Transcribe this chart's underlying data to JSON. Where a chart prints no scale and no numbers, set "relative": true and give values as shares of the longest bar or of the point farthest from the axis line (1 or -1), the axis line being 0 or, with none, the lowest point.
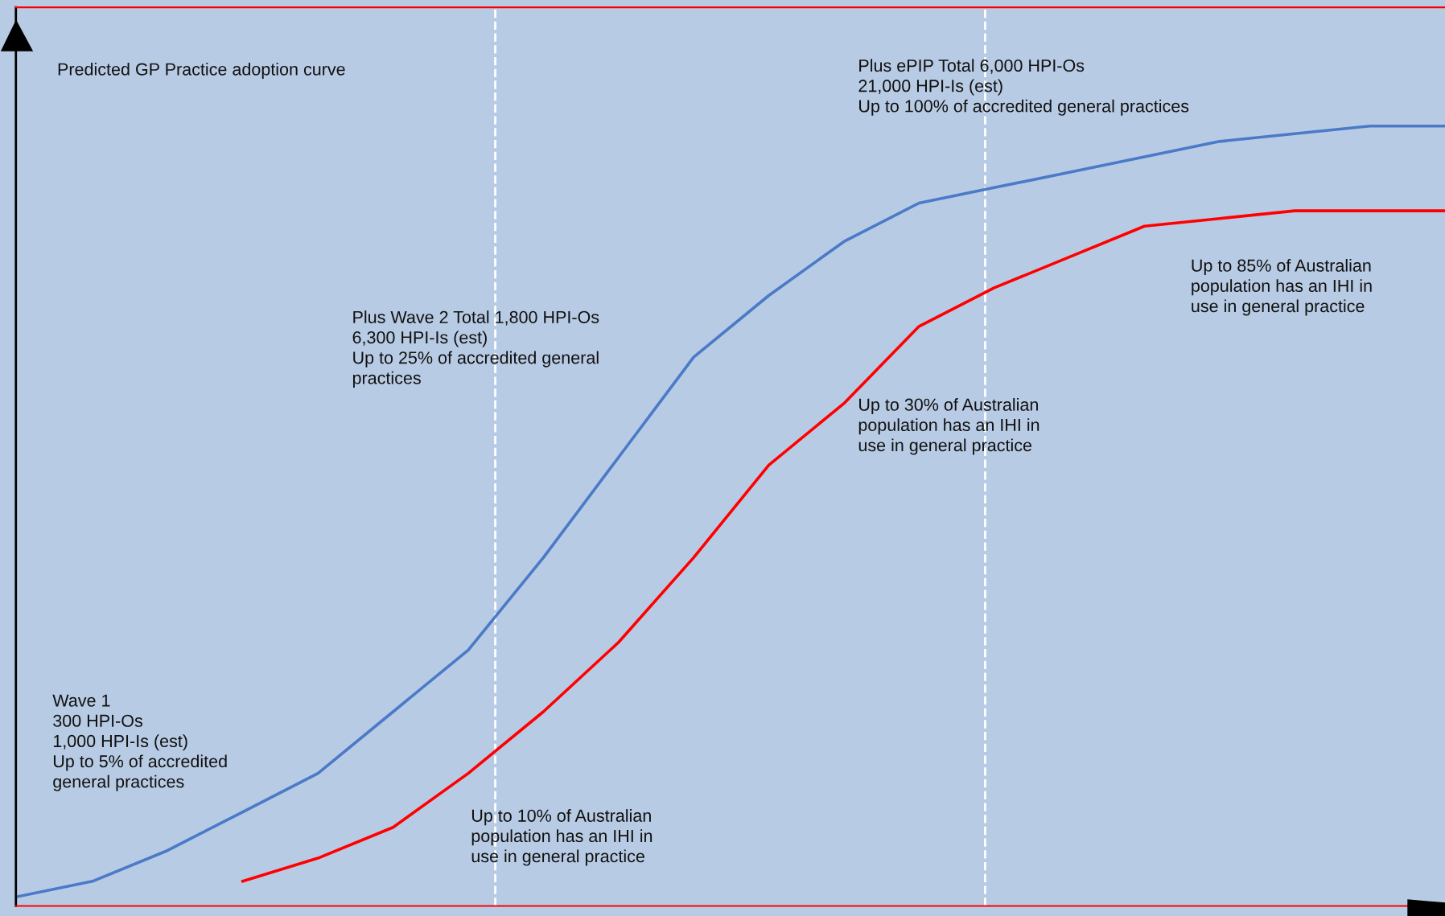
{
  "chart_data": {
    "type": "line",
    "relative": true,
    "categories": [
      null,
      null,
      null,
      null,
      null,
      null,
      null,
      null,
      null,
      null,
      null,
      null,
      null,
      null,
      null,
      null,
      null,
      null,
      null,
      null
    ],
    "series": [
      {
        "color": "#4a7ac8",
        "values": [
          0,
          0.02,
          0.06,
          0.11,
          0.16,
          0.24,
          0.32,
          0.44,
          0.57,
          0.7,
          0.78,
          0.85,
          0.9,
          0.92,
          0.94,
          0.96,
          0.98,
          0.99,
          1.0,
          1.0
        ]
      },
      {
        "color": "#ff0000",
        "values": [
          null,
          null,
          null,
          0.02,
          0.05,
          0.09,
          0.16,
          0.24,
          0.33,
          0.44,
          0.56,
          0.64,
          0.74,
          0.79,
          0.83,
          0.87,
          0.88,
          0.89,
          0.89,
          0.89
        ]
      }
    ],
    "annotations": [
      "Predicted GP Practice adoption curve",
      "Wave 1\n300 HPI-Os\n1,000 HPI-Is (est)\nUp to 5% of accredited\ngeneral practices",
      "Plus Wave 2 Total 1,800 HPI-Os\n6,300 HPI-Is (est)\nUp to 25% of accredited general\npractices",
      "Up to 10% of Australian\npopulation has an IHI in\nuse in general practice",
      "Up to 30% of Australian\npopulation has an IHI in\nuse in general practice",
      "Plus ePIP Total 6,000 HPI-Os\n21,000 HPI-Is (est)\nUp to 100% of accredited general practices",
      "Up to 85% of Australian\npopulation has an IHI in\nuse in general practice"
    ],
    "legend": false,
    "line_style": "solid",
    "marker": "none"
  }
}
